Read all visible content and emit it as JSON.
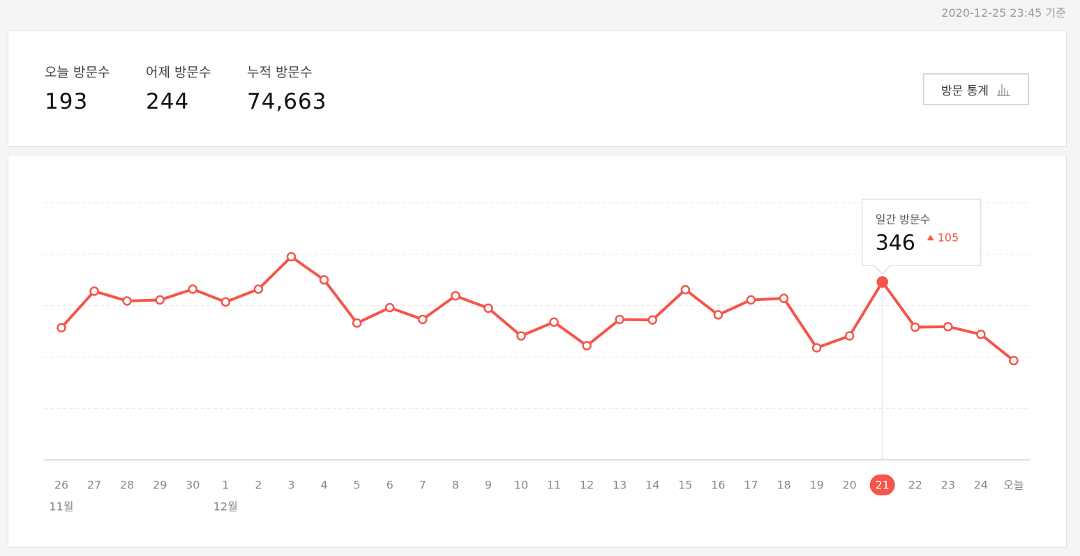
{
  "header": {
    "timestamp": "2020-12-25 23:45 기준"
  },
  "stats": [
    {
      "label": "오늘 방문수",
      "value": "193"
    },
    {
      "label": "어제 방문수",
      "value": "244"
    },
    {
      "label": "누적 방문수",
      "value": "74,663"
    }
  ],
  "button": {
    "label": "방문 통계"
  },
  "chart_data": {
    "type": "line",
    "categories": [
      "26",
      "27",
      "28",
      "29",
      "30",
      "1",
      "2",
      "3",
      "4",
      "5",
      "6",
      "7",
      "8",
      "9",
      "10",
      "11",
      "12",
      "13",
      "14",
      "15",
      "16",
      "17",
      "18",
      "19",
      "20",
      "21",
      "22",
      "23",
      "24",
      "오늘"
    ],
    "month_labels": [
      "11월",
      null,
      null,
      null,
      null,
      "12월",
      null,
      null,
      null,
      null,
      null,
      null,
      null,
      null,
      null,
      null,
      null,
      null,
      null,
      null,
      null,
      null,
      null,
      null,
      null,
      null,
      null,
      null,
      null,
      null
    ],
    "series": [
      {
        "name": "일간 방문수",
        "color": "#f5554a",
        "values": [
          257,
          328,
          309,
          311,
          332,
          307,
          332,
          395,
          350,
          266,
          296,
          273,
          319,
          295,
          241,
          268,
          222,
          273,
          272,
          331,
          282,
          311,
          314,
          218,
          241,
          346,
          258,
          259,
          244,
          193
        ]
      }
    ],
    "ylim": [
      0,
      500
    ],
    "yticks": [
      100,
      200,
      300,
      400,
      500
    ],
    "grid": true,
    "tooltip": {
      "index": 25,
      "title": "일간 방문수",
      "change": 105
    }
  }
}
